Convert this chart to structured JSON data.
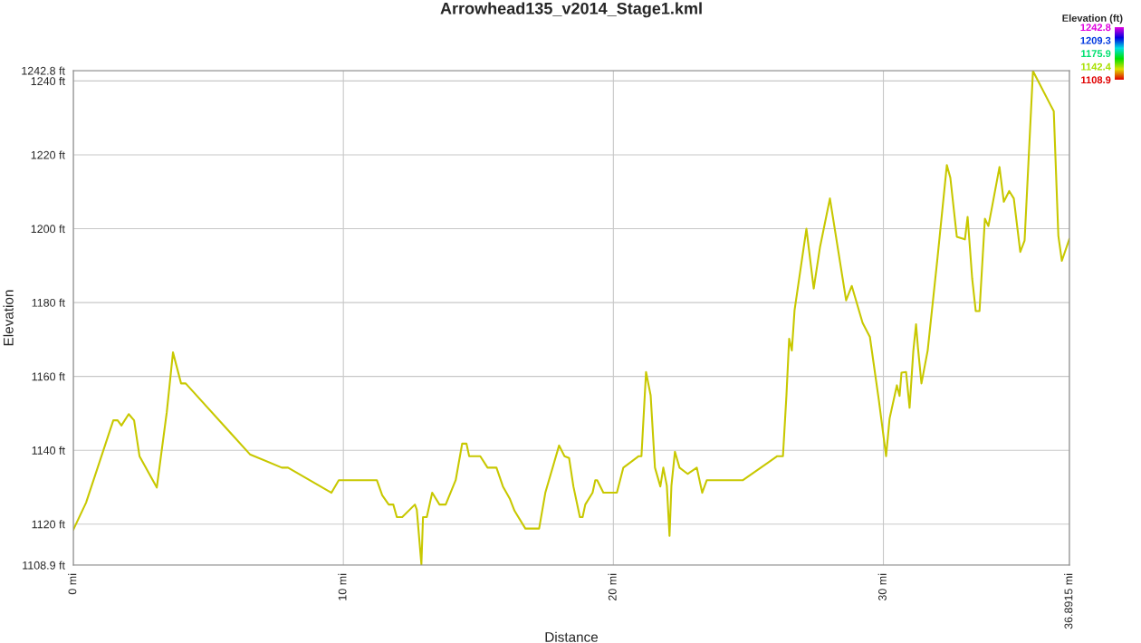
{
  "chart_data": {
    "type": "line",
    "title": "Arrowhead135_v2014_Stage1.kml",
    "xlabel": "Distance",
    "ylabel": "Elevation",
    "clabel": "Elevation (ft)",
    "x": [
      0,
      0.47,
      1.48,
      1.64,
      1.78,
      2.05,
      2.25,
      2.45,
      3.09,
      3.46,
      3.69,
      3.99,
      4.16,
      6.54,
      7.72,
      7.95,
      9.56,
      9.83,
      11.24,
      11.44,
      11.68,
      11.85,
      11.98,
      12.18,
      12.65,
      12.72,
      12.89,
      12.95,
      13.09,
      13.29,
      13.56,
      13.79,
      14.16,
      14.4,
      14.56,
      14.66,
      15.07,
      15.34,
      15.67,
      15.91,
      16.17,
      16.34,
      16.74,
      17.25,
      17.48,
      17.99,
      18.19,
      18.36,
      18.52,
      18.76,
      18.86,
      18.96,
      19.23,
      19.33,
      19.4,
      19.63,
      20.13,
      20.37,
      20.94,
      21.04,
      21.21,
      21.38,
      21.54,
      21.74,
      21.85,
      21.98,
      22.08,
      22.15,
      22.28,
      22.45,
      22.75,
      23.09,
      23.29,
      23.46,
      24.8,
      26.07,
      26.28,
      26.41,
      26.51,
      26.61,
      26.71,
      27.15,
      27.42,
      27.65,
      28.02,
      28.62,
      28.83,
      29.23,
      29.5,
      29.83,
      30.1,
      30.23,
      30.5,
      30.6,
      30.67,
      30.84,
      30.97,
      31.11,
      31.21,
      31.28,
      31.41,
      31.64,
      32.01,
      32.35,
      32.48,
      32.72,
      33.02,
      33.12,
      33.29,
      33.42,
      33.56,
      33.76,
      33.89,
      34.03,
      34.3,
      34.46,
      34.66,
      34.83,
      35.07,
      35.23,
      35.54,
      36.21,
      36.31,
      36.48,
      36.61,
      36.8915
    ],
    "series": [
      {
        "color": "#c8c800",
        "values": [
          1118.5,
          1125.8,
          1148.1,
          1148.1,
          1146.7,
          1149.8,
          1148.1,
          1138.4,
          1129.9,
          1150.3,
          1166.5,
          1158.1,
          1158.1,
          1138.9,
          1135.3,
          1135.3,
          1128.5,
          1131.9,
          1131.9,
          1127.8,
          1125.3,
          1125.3,
          1121.9,
          1121.9,
          1125.3,
          1123.9,
          1109.1,
          1121.9,
          1121.9,
          1128.5,
          1125.3,
          1125.3,
          1131.9,
          1141.8,
          1141.8,
          1138.4,
          1138.4,
          1135.3,
          1135.3,
          1130.2,
          1126.8,
          1123.6,
          1118.8,
          1118.8,
          1128.5,
          1141.3,
          1138.4,
          1137.9,
          1130.2,
          1121.9,
          1121.9,
          1125.3,
          1128.5,
          1131.9,
          1131.9,
          1128.5,
          1128.5,
          1135.3,
          1138.4,
          1138.4,
          1161.2,
          1154.9,
          1135.3,
          1130.2,
          1135.3,
          1130.4,
          1116.8,
          1130.4,
          1139.6,
          1135.3,
          1133.6,
          1135.3,
          1128.5,
          1131.9,
          1131.9,
          1138.4,
          1138.4,
          1154.9,
          1170.2,
          1167.0,
          1177.9,
          1200.0,
          1183.8,
          1194.9,
          1208.2,
          1180.6,
          1184.5,
          1174.5,
          1170.7,
          1153.7,
          1138.4,
          1148.6,
          1157.6,
          1154.7,
          1161.0,
          1161.2,
          1151.5,
          1167.0,
          1174.1,
          1167.8,
          1158.1,
          1167.0,
          1192.5,
          1217.2,
          1213.8,
          1197.8,
          1197.1,
          1203.2,
          1186.4,
          1177.7,
          1177.7,
          1202.7,
          1200.7,
          1206.1,
          1216.7,
          1207.3,
          1210.2,
          1208.2,
          1193.7,
          1196.8,
          1242.7,
          1233.2,
          1231.8,
          1198.1,
          1191.3,
          1197.3
        ]
      }
    ],
    "xlim": [
      0,
      36.8915
    ],
    "ylim": [
      1108.9,
      1242.8
    ],
    "xticks": [
      {
        "value": 0,
        "label": "0 mi"
      },
      {
        "value": 10,
        "label": "10 mi"
      },
      {
        "value": 20,
        "label": "20 mi"
      },
      {
        "value": 30,
        "label": "30 mi"
      },
      {
        "value": 36.8915,
        "label": "36.8915 mi"
      }
    ],
    "yticks": [
      {
        "value": 1108.9,
        "label": "1108.9 ft"
      },
      {
        "value": 1120,
        "label": "1120 ft"
      },
      {
        "value": 1140,
        "label": "1140 ft"
      },
      {
        "value": 1160,
        "label": "1160 ft"
      },
      {
        "value": 1180,
        "label": "1180 ft"
      },
      {
        "value": 1200,
        "label": "1200 ft"
      },
      {
        "value": 1220,
        "label": "1220 ft"
      },
      {
        "value": 1240,
        "label": "1240 ft"
      },
      {
        "value": 1242.8,
        "label": "1242.8 ft"
      }
    ],
    "clim": [
      1108.9,
      1242.8
    ],
    "cticks": [
      1242.8,
      1209.3,
      1175.9,
      1142.4,
      1108.9
    ],
    "grid": true,
    "legend": false
  }
}
